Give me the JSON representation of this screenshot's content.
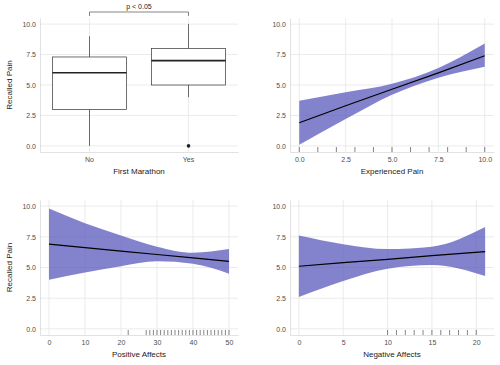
{
  "chart_data": [
    {
      "type": "box",
      "categories": [
        "No",
        "Yes"
      ],
      "x_label": "First Marathon",
      "y_label": "Recalled Pain",
      "annotation": "p < 0.05",
      "boxes": [
        {
          "min": 0,
          "q1": 3,
          "median": 6,
          "q3": 7.3,
          "max": 9
        },
        {
          "min": 4,
          "q1": 5,
          "median": 7,
          "q3": 8,
          "max": 10,
          "outliers": [
            0
          ]
        }
      ],
      "ylim": [
        -0.5,
        10.5
      ],
      "yticks": [
        {
          "value": 0,
          "label": "0.0"
        },
        {
          "value": 2.5,
          "label": "2.5"
        },
        {
          "value": 5,
          "label": "5.0"
        },
        {
          "value": 7.5,
          "label": "7.5"
        },
        {
          "value": 10,
          "label": "10.0"
        }
      ],
      "grid": true
    },
    {
      "type": "line",
      "x_label": "Experienced Pain",
      "color": "#5a5abc",
      "x": [
        0,
        2.5,
        5,
        7.5,
        10
      ],
      "fit": [
        1.9,
        3.3,
        4.65,
        6.0,
        7.4
      ],
      "lower": [
        0.1,
        2.2,
        4.2,
        5.6,
        6.5
      ],
      "upper": [
        3.7,
        4.4,
        5.1,
        6.4,
        8.4
      ],
      "rug": [
        0,
        1,
        2,
        3,
        4,
        5,
        6,
        7,
        8,
        9,
        10
      ],
      "xlim": [
        -0.5,
        10.5
      ],
      "xticks": [
        {
          "value": 0,
          "label": "0.0"
        },
        {
          "value": 2.5,
          "label": "2.5"
        },
        {
          "value": 5,
          "label": "5.0"
        },
        {
          "value": 7.5,
          "label": "7.5"
        },
        {
          "value": 10,
          "label": "10.0"
        }
      ],
      "ylim": [
        -0.5,
        10.5
      ],
      "yticks": [
        {
          "value": 0,
          "label": "0.0"
        },
        {
          "value": 2.5,
          "label": "2.5"
        },
        {
          "value": 5,
          "label": "5.0"
        },
        {
          "value": 7.5,
          "label": "7.5"
        },
        {
          "value": 10,
          "label": "10.0"
        }
      ],
      "grid": true
    },
    {
      "type": "line",
      "x_label": "Positive Affects",
      "y_label": "Recalled Pain",
      "color": "#5a5abc",
      "x": [
        0,
        10,
        20,
        30,
        40,
        50
      ],
      "fit": [
        6.9,
        6.62,
        6.34,
        6.06,
        5.78,
        5.5
      ],
      "lower": [
        4.0,
        4.6,
        5.1,
        5.5,
        5.3,
        4.5
      ],
      "upper": [
        9.8,
        8.6,
        7.6,
        6.7,
        6.2,
        6.5
      ],
      "rug": [
        22,
        27,
        28,
        29,
        30,
        31,
        32,
        33,
        34,
        35,
        36,
        37,
        38,
        39,
        40,
        41,
        42,
        43,
        44,
        45,
        46,
        47,
        48,
        49,
        50
      ],
      "xlim": [
        -2.5,
        52.5
      ],
      "xticks": [
        0,
        10,
        20,
        30,
        40,
        50
      ],
      "ylim": [
        -0.5,
        10.5
      ],
      "yticks": [
        {
          "value": 0,
          "label": "0.0"
        },
        {
          "value": 2.5,
          "label": "2.5"
        },
        {
          "value": 5,
          "label": "5.0"
        },
        {
          "value": 7.5,
          "label": "7.5"
        },
        {
          "value": 10,
          "label": "10.0"
        }
      ],
      "grid": true
    },
    {
      "type": "line",
      "x_label": "Negative Affects",
      "color": "#5a5abc",
      "x": [
        0,
        5,
        10,
        15,
        21
      ],
      "fit": [
        5.1,
        5.39,
        5.67,
        5.96,
        6.3
      ],
      "lower": [
        2.6,
        3.9,
        4.9,
        5.2,
        4.3
      ],
      "upper": [
        7.6,
        6.9,
        6.5,
        6.7,
        8.3
      ],
      "rug": [
        10,
        11,
        12,
        13,
        14,
        15,
        16,
        17,
        18,
        19,
        20
      ],
      "xlim": [
        -1,
        22
      ],
      "xticks": [
        0,
        5,
        10,
        15,
        20
      ],
      "ylim": [
        -0.5,
        10.5
      ],
      "yticks": [
        {
          "value": 0,
          "label": "0.0"
        },
        {
          "value": 2.5,
          "label": "2.5"
        },
        {
          "value": 5,
          "label": "5.0"
        },
        {
          "value": 7.5,
          "label": "7.5"
        },
        {
          "value": 10,
          "label": "10.0"
        }
      ],
      "grid": true
    }
  ]
}
